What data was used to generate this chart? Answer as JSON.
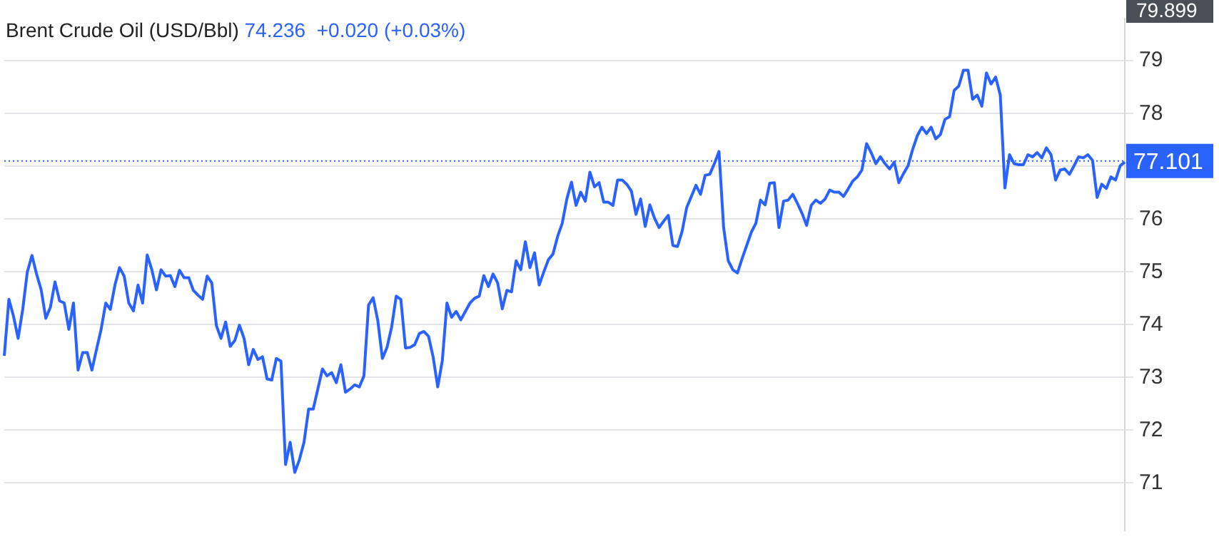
{
  "chart_data": {
    "type": "line",
    "title": "Brent Crude Oil (USD/Bbl)",
    "subtitle": "74.236  +0.020 (+0.03%)",
    "categories": [
      null,
      null,
      null,
      null,
      null,
      null,
      null,
      null,
      null,
      null,
      null,
      null,
      null,
      null,
      null,
      null,
      null,
      null,
      null,
      null,
      null,
      null,
      null,
      null,
      null,
      null,
      null,
      null,
      null,
      null,
      null,
      null,
      null,
      null,
      null,
      null,
      null,
      null,
      null,
      null,
      null,
      null,
      null,
      null,
      null,
      null,
      null,
      null,
      null,
      null,
      null,
      null,
      null,
      null,
      null,
      null,
      null,
      null,
      null,
      null,
      null,
      null,
      null,
      null,
      null,
      null,
      null,
      null,
      null,
      null,
      null,
      null,
      null,
      null,
      null,
      null,
      null,
      null,
      null,
      null,
      null,
      null,
      null,
      null,
      null,
      null,
      null,
      null,
      null,
      null,
      null,
      null,
      null,
      null,
      null,
      null,
      null,
      null,
      null,
      null,
      null,
      null,
      null,
      null,
      null,
      null,
      null,
      null,
      null,
      null,
      null,
      null,
      null,
      null,
      null,
      null,
      null,
      null,
      null,
      null,
      null,
      null,
      null,
      null,
      null,
      null,
      null,
      null,
      null,
      null,
      null,
      null,
      null,
      null,
      null,
      null,
      null,
      null,
      null,
      null,
      null,
      null,
      null,
      null,
      null,
      null,
      null,
      null,
      null,
      null,
      null,
      null,
      null,
      null,
      null,
      null,
      null,
      null,
      null,
      null,
      null,
      null,
      null,
      null,
      null,
      null,
      null,
      null,
      null,
      null,
      null,
      null,
      null,
      null,
      null,
      null,
      null,
      null,
      null,
      null,
      null,
      null,
      null,
      null,
      null,
      null,
      null,
      null,
      null,
      null,
      null,
      null,
      null,
      null,
      null,
      null,
      null,
      null,
      null,
      null,
      null,
      null,
      null,
      null,
      null,
      null,
      null,
      null,
      null,
      null,
      null,
      null,
      null,
      null,
      null,
      null,
      null,
      null,
      null,
      null,
      null,
      null,
      null,
      null,
      null,
      null,
      null,
      null,
      null,
      null,
      null,
      null,
      null,
      null,
      null,
      null,
      null,
      null,
      null,
      null,
      null,
      null,
      null,
      null
    ],
    "values": [
      73.41,
      74.48,
      74.16,
      73.74,
      74.29,
      75.0,
      75.31,
      74.96,
      74.66,
      74.12,
      74.33,
      74.81,
      74.45,
      74.41,
      73.91,
      74.41,
      73.14,
      73.47,
      73.47,
      73.14,
      73.53,
      73.91,
      74.41,
      74.29,
      74.75,
      75.08,
      74.92,
      74.41,
      74.26,
      74.75,
      74.41,
      75.32,
      75.04,
      74.66,
      75.04,
      74.92,
      74.93,
      74.72,
      75.03,
      74.89,
      74.89,
      74.65,
      74.56,
      74.48,
      74.92,
      74.79,
      73.98,
      73.74,
      74.05,
      73.59,
      73.7,
      73.99,
      73.74,
      73.24,
      73.53,
      73.34,
      73.39,
      72.97,
      72.95,
      73.36,
      73.31,
      71.35,
      71.77,
      71.2,
      71.44,
      71.77,
      72.4,
      72.4,
      72.78,
      73.16,
      73.03,
      73.09,
      72.9,
      73.24,
      72.72,
      72.78,
      72.86,
      72.82,
      73.03,
      74.37,
      74.51,
      74.08,
      73.36,
      73.57,
      73.95,
      74.54,
      74.48,
      73.56,
      73.57,
      73.62,
      73.83,
      73.87,
      73.78,
      73.39,
      72.82,
      73.32,
      74.41,
      74.14,
      74.25,
      74.09,
      74.25,
      74.41,
      74.5,
      74.54,
      74.93,
      74.72,
      74.96,
      74.79,
      74.3,
      74.65,
      74.62,
      75.21,
      75.04,
      75.57,
      75.08,
      75.36,
      74.75,
      75.0,
      75.23,
      75.34,
      75.67,
      75.92,
      76.38,
      76.7,
      76.26,
      76.51,
      76.34,
      76.89,
      76.61,
      76.69,
      76.32,
      76.32,
      76.26,
      76.74,
      76.74,
      76.66,
      76.53,
      76.09,
      76.38,
      75.86,
      76.27,
      76.02,
      75.84,
      75.96,
      76.07,
      75.5,
      75.48,
      75.77,
      76.22,
      76.43,
      76.64,
      76.47,
      76.83,
      76.85,
      77.05,
      77.28,
      75.84,
      75.21,
      75.04,
      74.98,
      75.25,
      75.5,
      75.75,
      75.92,
      76.36,
      76.27,
      76.68,
      76.69,
      75.84,
      76.34,
      76.36,
      76.47,
      76.3,
      76.11,
      75.88,
      76.26,
      76.36,
      76.3,
      76.38,
      76.55,
      76.51,
      76.51,
      76.43,
      76.57,
      76.72,
      76.8,
      76.93,
      77.43,
      77.26,
      77.05,
      77.18,
      77.05,
      76.95,
      77.08,
      76.69,
      76.86,
      77.01,
      77.32,
      77.58,
      77.74,
      77.62,
      77.74,
      77.52,
      77.6,
      77.89,
      77.94,
      78.44,
      78.52,
      78.82,
      78.82,
      78.27,
      78.35,
      78.14,
      78.77,
      78.56,
      78.69,
      78.35,
      76.59,
      77.22,
      77.05,
      77.03,
      77.03,
      77.22,
      77.18,
      77.26,
      77.16,
      77.35,
      77.22,
      76.74,
      76.93,
      76.95,
      76.85,
      77.01,
      77.18,
      77.16,
      77.22,
      77.11,
      76.41,
      76.66,
      76.58,
      76.8,
      76.74,
      77.01,
      77.08
    ],
    "color": "#2962ff",
    "marker": "none",
    "ylim": [
      70.1,
      79.8
    ],
    "yticks": [
      71,
      72,
      73,
      74,
      75,
      76,
      {
        "value": 77,
        "label": null
      },
      78,
      79
    ],
    "grid": "y",
    "legend": false,
    "tick_labels": "y",
    "ref_lines": [
      {
        "axis": "y",
        "value": 77.101,
        "label": "77.101",
        "color": "#2962ff",
        "line_style": "dotted"
      }
    ],
    "annotations": [
      "79.899"
    ]
  }
}
